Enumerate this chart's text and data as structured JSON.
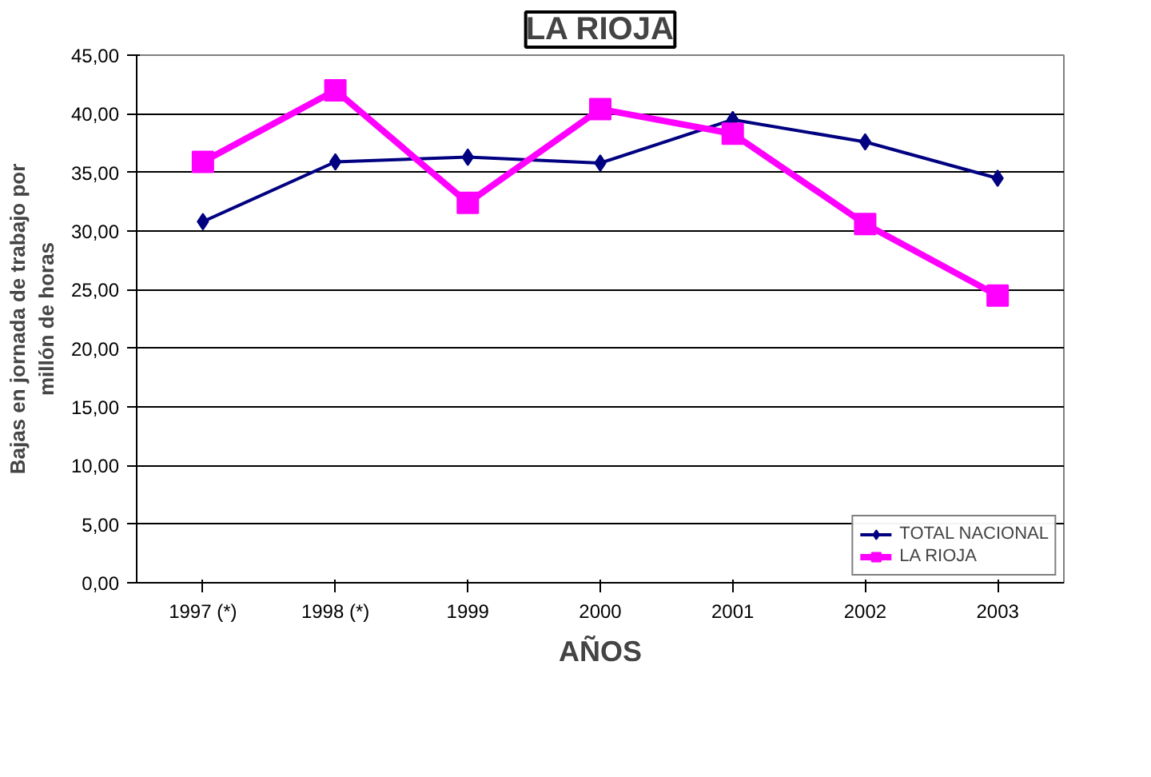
{
  "chart_data": {
    "type": "line",
    "title": "LA RIOJA",
    "xlabel": "AÑOS",
    "ylabel": "Bajas en jornada de trabajo por millón de horas",
    "categories": [
      "1997 (*)",
      "1998 (*)",
      "1999",
      "2000",
      "2001",
      "2002",
      "2003"
    ],
    "series": [
      {
        "name": "TOTAL NACIONAL",
        "color": "#000080",
        "marker": "diamond",
        "values": [
          30.8,
          35.9,
          36.3,
          35.8,
          39.5,
          37.6,
          34.5
        ]
      },
      {
        "name": "LA RIOJA",
        "color": "#ff00ff",
        "marker": "square",
        "values": [
          35.9,
          42.0,
          32.4,
          40.4,
          38.3,
          30.6,
          24.5
        ]
      }
    ],
    "ylim": [
      0,
      45
    ],
    "yticks": [
      {
        "value": 0,
        "label": "0,00"
      },
      {
        "value": 5,
        "label": "5,00"
      },
      {
        "value": 10,
        "label": "10,00"
      },
      {
        "value": 15,
        "label": "15,00"
      },
      {
        "value": 20,
        "label": "20,00"
      },
      {
        "value": 25,
        "label": "25,00"
      },
      {
        "value": 30,
        "label": "30,00"
      },
      {
        "value": 35,
        "label": "35,00"
      },
      {
        "value": 40,
        "label": "40,00"
      },
      {
        "value": 45,
        "label": "45,00"
      }
    ],
    "grid": "y",
    "legend": "bottom right",
    "line_style": "solid"
  }
}
